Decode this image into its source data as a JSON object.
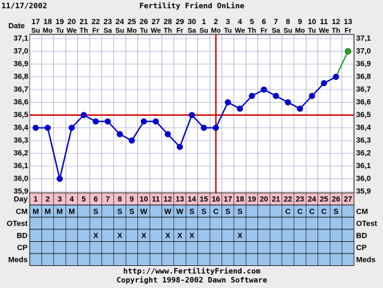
{
  "chart_data": {
    "type": "line",
    "date": "11/17/2002",
    "title": "Fertility Friend OnLine",
    "row_label": "Date",
    "categories": [
      "17",
      "18",
      "19",
      "20",
      "21",
      "22",
      "23",
      "24",
      "25",
      "26",
      "27",
      "28",
      "29",
      "30",
      "1",
      "2",
      "3",
      "4",
      "5",
      "6",
      "7",
      "8",
      "9",
      "10",
      "11",
      "12",
      "13"
    ],
    "weekdays": [
      "Su",
      "Mo",
      "Tu",
      "We",
      "Th",
      "Fr",
      "Sa",
      "Su",
      "Mo",
      "Tu",
      "We",
      "Th",
      "Fr",
      "Sa",
      "Su",
      "Mo",
      "Tu",
      "We",
      "Th",
      "Fr",
      "Sa",
      "Su",
      "Mo",
      "Tu",
      "We",
      "Th",
      "Fr"
    ],
    "series": [
      {
        "color": "#0000cc",
        "values": [
          36.4,
          36.4,
          36.0,
          36.4,
          36.5,
          36.45,
          36.45,
          36.35,
          36.3,
          36.45,
          36.45,
          36.35,
          36.25,
          36.5,
          36.4,
          36.4,
          36.6,
          36.55,
          36.65,
          36.7,
          36.65,
          36.6,
          36.55,
          36.65,
          36.75,
          36.8,
          37.0
        ]
      }
    ],
    "last_segment_color": "#22aa22",
    "coverline": 36.5,
    "coverline_color": "#cc0000",
    "ovulation_day": 16,
    "ylim": [
      35.9,
      37.1
    ],
    "yticks": [
      {
        "value": 35.9,
        "label": "35,9"
      },
      {
        "value": 36.0,
        "label": "36,0"
      },
      {
        "value": 36.1,
        "label": "36,1"
      },
      {
        "value": 36.2,
        "label": "36,2"
      },
      {
        "value": 36.3,
        "label": "36,3"
      },
      {
        "value": 36.4,
        "label": "36,4"
      },
      {
        "value": 36.5,
        "label": "36,5"
      },
      {
        "value": 36.6,
        "label": "36,6"
      },
      {
        "value": 36.7,
        "label": "36,7"
      },
      {
        "value": 36.8,
        "label": "36,8"
      },
      {
        "value": 36.9,
        "label": "36,9"
      },
      {
        "value": 37.0,
        "label": "37,0"
      },
      {
        "value": 37.1,
        "label": "37,1"
      }
    ],
    "grid": true,
    "table": {
      "rows": [
        {
          "label": "Day",
          "cells": [
            1,
            2,
            3,
            4,
            5,
            6,
            7,
            8,
            9,
            10,
            11,
            12,
            13,
            14,
            15,
            16,
            17,
            18,
            19,
            20,
            21,
            22,
            23,
            24,
            25,
            26,
            27
          ]
        },
        {
          "label": "CM",
          "cells": [
            "M",
            "M",
            "M",
            "M",
            null,
            "S",
            null,
            "S",
            "S",
            "W",
            null,
            "W",
            "W",
            "S",
            "S",
            "C",
            "S",
            "S",
            null,
            null,
            null,
            "C",
            "C",
            "C",
            "C",
            "S",
            null
          ]
        },
        {
          "label": "OTest",
          "cells": [
            null,
            null,
            null,
            null,
            null,
            null,
            null,
            null,
            null,
            null,
            null,
            null,
            null,
            null,
            null,
            null,
            null,
            null,
            null,
            null,
            null,
            null,
            null,
            null,
            null,
            null,
            null
          ]
        },
        {
          "label": "BD",
          "cells": [
            null,
            null,
            null,
            null,
            null,
            "X",
            null,
            "X",
            null,
            "X",
            null,
            "X",
            "X",
            "X",
            null,
            null,
            null,
            "X",
            null,
            null,
            null,
            null,
            null,
            null,
            null,
            null,
            null
          ]
        },
        {
          "label": "CP",
          "cells": [
            null,
            null,
            null,
            null,
            null,
            null,
            null,
            null,
            null,
            null,
            null,
            null,
            null,
            null,
            null,
            null,
            null,
            null,
            null,
            null,
            null,
            null,
            null,
            null,
            null,
            null,
            null
          ]
        },
        {
          "label": "Meds",
          "cells": [
            null,
            null,
            null,
            null,
            null,
            null,
            null,
            null,
            null,
            null,
            null,
            null,
            null,
            null,
            null,
            null,
            null,
            null,
            null,
            null,
            null,
            null,
            null,
            null,
            null,
            null,
            null
          ]
        }
      ]
    },
    "footer": [
      "http://www.FertilityFriend.com",
      "Copyright 1998-2002 Dawn Software"
    ]
  }
}
